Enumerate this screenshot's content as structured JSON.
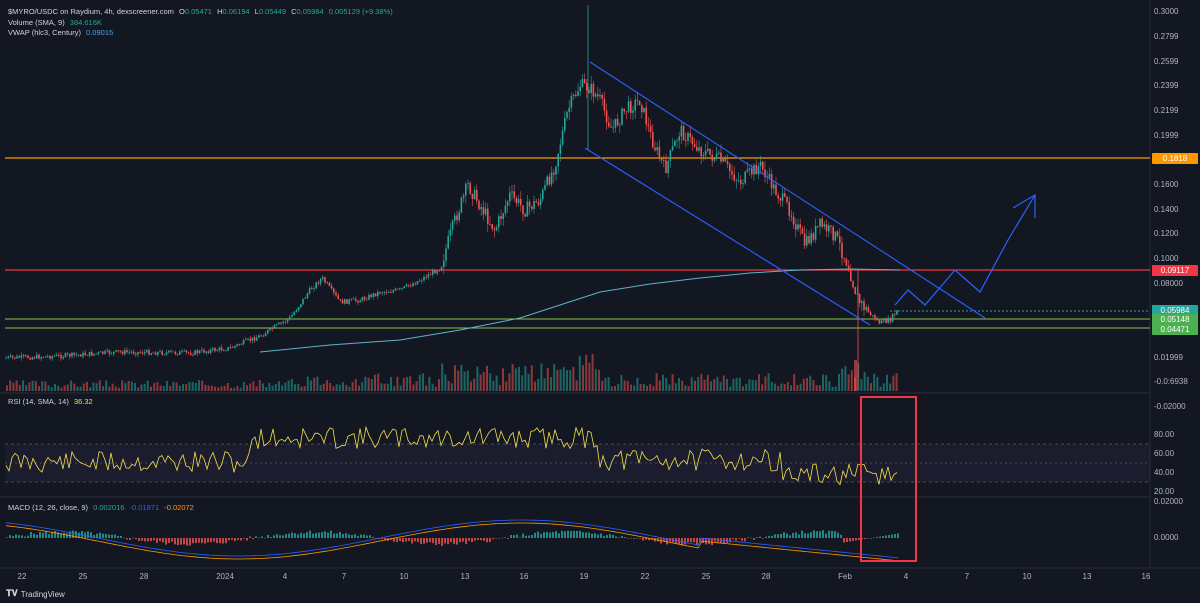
{
  "header": {
    "pair_line": {
      "title": "$MYRO/USDC on Raydium, 4h, dexscreener.com",
      "o_label": "O",
      "o": "0.05471",
      "h_label": "H",
      "h": "0.06194",
      "l_label": "L",
      "l": "0.05449",
      "c_label": "C",
      "c": "0.05984",
      "change": "0.005129 (+9.38%)"
    },
    "volume_line": {
      "label": "Volume (SMA, 9)",
      "value": "384.616K"
    },
    "vwap_line": {
      "label": "VWAP (hlc3, Century)",
      "value": "0.09015"
    }
  },
  "rsi_legend": {
    "label": "RSI (14, SMA, 14)",
    "value": "36.32"
  },
  "macd_legend": {
    "label": "MACD (12, 26, close, 9)",
    "v1": "0.002016",
    "v2": "-0.01871",
    "v3": "-0.02072"
  },
  "price_axis": [
    "0.3000",
    "0.2799",
    "0.2599",
    "0.2399",
    "0.2199",
    "0.1999",
    "0.1600",
    "0.1400",
    "0.1200",
    "0.1000",
    "0.08000",
    "0.01999",
    "-0.0:6938",
    "-0.02000"
  ],
  "rsi_axis": [
    "80.00",
    "60.00",
    "40.00",
    "20.00"
  ],
  "macd_axis": [
    "0.02000",
    "0.0000"
  ],
  "badges": {
    "resistance_high": "0.1818",
    "resistance_mid": "0.09117",
    "last_price": "0.05984",
    "support_1": "0.05148",
    "support_2": "0.04471"
  },
  "colors": {
    "background": "#131722",
    "up": "#26a69a",
    "down": "#ef5350",
    "orange_line": "#ff9800",
    "red_line": "#f23645",
    "green_line": "#8bc34a",
    "channel": "#2962ff",
    "vwap": "#5fb3c9",
    "rsi": "#f5e04e",
    "highlight_box": "#f23645"
  },
  "time_axis": [
    "22",
    "25",
    "28",
    "2024",
    "4",
    "7",
    "10",
    "13",
    "16",
    "19",
    "22",
    "25",
    "28",
    "Feb",
    "4",
    "7",
    "10",
    "13",
    "16"
  ],
  "footer": {
    "brand": "TradingView"
  }
}
